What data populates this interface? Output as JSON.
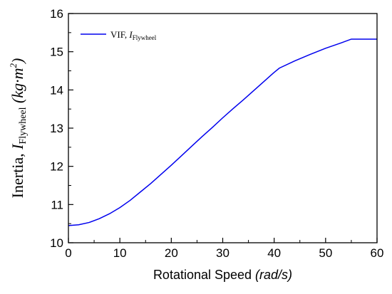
{
  "chart_data": {
    "type": "line",
    "xlabel_main": "Rotational Speed ",
    "xlabel_unit": "(rad/s)",
    "ylabel_main": "Inertia, ",
    "ylabel_symbol": "I",
    "ylabel_subscript": "Flywheel",
    "ylabel_unit_open": " (kg·m",
    "ylabel_unit_exp": "2",
    "ylabel_unit_close": ")",
    "xlim": [
      0,
      60
    ],
    "ylim": [
      10,
      16
    ],
    "xticks": [
      0,
      10,
      20,
      30,
      40,
      50,
      60
    ],
    "yticks": [
      10,
      11,
      12,
      13,
      14,
      15,
      16
    ],
    "grid": false,
    "legend": {
      "position": "top-left",
      "entry_main": "VIF, ",
      "entry_symbol": "I",
      "entry_subscript": "Flywheel"
    },
    "series": [
      {
        "color": "#0000ee",
        "x": [
          0,
          2,
          4,
          6,
          8,
          10,
          12,
          14,
          16,
          18,
          20,
          22,
          24,
          26,
          28,
          30,
          32,
          34,
          36,
          38,
          40,
          41,
          44,
          47,
          50,
          53,
          55,
          57,
          60
        ],
        "y": [
          10.45,
          10.47,
          10.53,
          10.63,
          10.76,
          10.92,
          11.11,
          11.33,
          11.55,
          11.79,
          12.03,
          12.28,
          12.53,
          12.78,
          13.02,
          13.27,
          13.51,
          13.74,
          13.98,
          14.22,
          14.46,
          14.57,
          14.76,
          14.93,
          15.09,
          15.23,
          15.33,
          15.33,
          15.33
        ]
      }
    ]
  }
}
